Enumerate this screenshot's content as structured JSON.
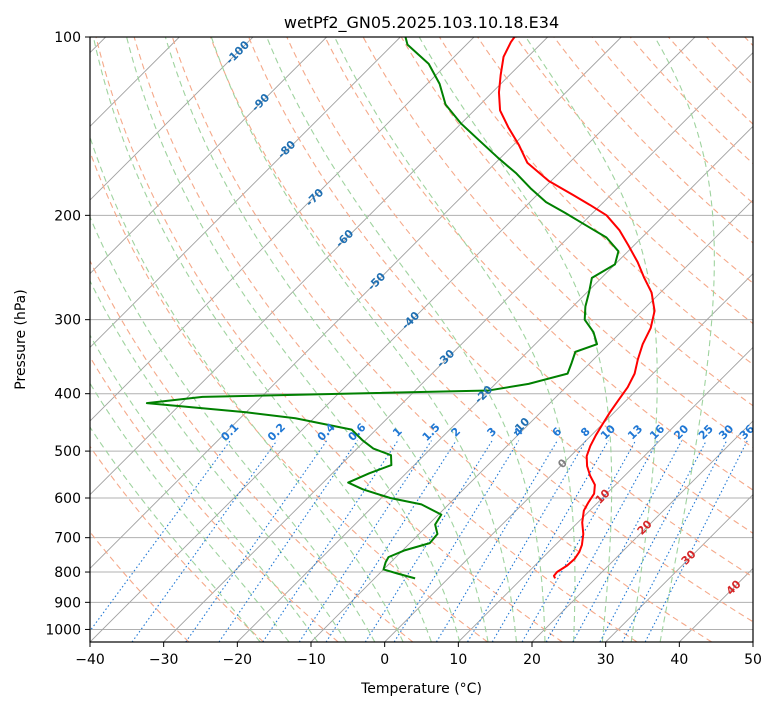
{
  "chart_data": {
    "type": "line",
    "title": "wetPf2_GN05.2025.103.10.18.E34",
    "xlabel": "Temperature (°C)",
    "ylabel": "Pressure (hPa)",
    "xlim": [
      -40,
      50
    ],
    "ylim": [
      1050,
      100
    ],
    "y_scale": "log",
    "skew": true,
    "grid": true,
    "x_ticks": [
      -40,
      -30,
      -20,
      -10,
      0,
      10,
      20,
      30,
      40,
      50
    ],
    "x_tick_labels": [
      "−40",
      "−30",
      "−20",
      "−10",
      "0",
      "10",
      "20",
      "30",
      "40",
      "50"
    ],
    "y_ticks": [
      1000,
      900,
      800,
      700,
      600,
      500,
      400,
      300,
      200,
      100
    ],
    "y_tick_labels": [
      "1000",
      "900",
      "800",
      "700",
      "600",
      "500",
      "400",
      "300",
      "200",
      "100"
    ],
    "series": [
      {
        "color": "#ff0000",
        "points": [
          [
            14.5,
            820
          ],
          [
            14.0,
            812
          ],
          [
            13.9,
            800
          ],
          [
            14.4,
            780
          ],
          [
            14.5,
            760
          ],
          [
            14.2,
            740
          ],
          [
            13.6,
            720
          ],
          [
            12.3,
            690
          ],
          [
            10.6,
            660
          ],
          [
            9.2,
            630
          ],
          [
            8.7,
            610
          ],
          [
            8.3,
            590
          ],
          [
            7.2,
            570
          ],
          [
            5.3,
            550
          ],
          [
            3.6,
            530
          ],
          [
            2.2,
            510
          ],
          [
            1.3,
            490
          ],
          [
            0.6,
            470
          ],
          [
            0.0,
            450
          ],
          [
            -0.6,
            430
          ],
          [
            -1.1,
            410
          ],
          [
            -1.6,
            390
          ],
          [
            -2.5,
            370
          ],
          [
            -4.0,
            350
          ],
          [
            -5.4,
            330
          ],
          [
            -6.5,
            310
          ],
          [
            -8.3,
            290
          ],
          [
            -11.2,
            270
          ],
          [
            -14.2,
            255
          ],
          [
            -17.2,
            240
          ],
          [
            -20.7,
            225
          ],
          [
            -24.0,
            212
          ],
          [
            -27.8,
            200
          ],
          [
            -31.5,
            192
          ],
          [
            -35.0,
            185
          ],
          [
            -40.3,
            175
          ],
          [
            -45.7,
            163
          ],
          [
            -49.3,
            152
          ],
          [
            -53.1,
            142
          ],
          [
            -56.5,
            133
          ],
          [
            -59.1,
            124
          ],
          [
            -61.2,
            116
          ],
          [
            -63.3,
            108
          ],
          [
            -64.3,
            102
          ],
          [
            -64.5,
            100
          ]
        ]
      },
      {
        "color": "#008000",
        "points": [
          [
            -4.5,
            820
          ],
          [
            -7.5,
            805
          ],
          [
            -10.0,
            792
          ],
          [
            -10.7,
            770
          ],
          [
            -11.0,
            755
          ],
          [
            -9.7,
            735
          ],
          [
            -7.3,
            715
          ],
          [
            -7.5,
            690
          ],
          [
            -9.1,
            665
          ],
          [
            -9.6,
            640
          ],
          [
            -13.7,
            615
          ],
          [
            -18.8,
            600
          ],
          [
            -23.7,
            580
          ],
          [
            -26.6,
            565
          ],
          [
            -25.0,
            545
          ],
          [
            -23.1,
            528
          ],
          [
            -24.5,
            508
          ],
          [
            -27.8,
            495
          ],
          [
            -30.3,
            480
          ],
          [
            -33.3,
            460
          ],
          [
            -42.5,
            440
          ],
          [
            -50.0,
            430
          ],
          [
            -64.7,
            415
          ],
          [
            -58.0,
            405
          ],
          [
            -20.0,
            395
          ],
          [
            -15.5,
            385
          ],
          [
            -11.6,
            370
          ],
          [
            -12.5,
            355
          ],
          [
            -13.5,
            340
          ],
          [
            -11.6,
            330
          ],
          [
            -13.7,
            315
          ],
          [
            -16.6,
            300
          ],
          [
            -18.3,
            285
          ],
          [
            -19.7,
            270
          ],
          [
            -21.3,
            255
          ],
          [
            -20.0,
            242
          ],
          [
            -21.3,
            230
          ],
          [
            -24.8,
            218
          ],
          [
            -29.2,
            208
          ],
          [
            -33.8,
            198
          ],
          [
            -37.8,
            190
          ],
          [
            -41.8,
            180
          ],
          [
            -45.7,
            170
          ],
          [
            -50.3,
            160
          ],
          [
            -55.0,
            150
          ],
          [
            -60.0,
            140
          ],
          [
            -64.7,
            130
          ],
          [
            -68.3,
            120
          ],
          [
            -72.5,
            111
          ],
          [
            -78.0,
            103
          ],
          [
            -79.3,
            100
          ]
        ]
      }
    ],
    "isotherm_labels": [
      "-100",
      "-90",
      "-80",
      "-70",
      "-60",
      "-50",
      "-40",
      "-30",
      "-20",
      "-10",
      "0",
      "10",
      "20",
      "30",
      "40"
    ],
    "mixing_ratio_labels": [
      "0.1",
      "0.2",
      "0.4",
      "0.6",
      "1",
      "1.5",
      "2",
      "3",
      "4",
      "6",
      "8",
      "10",
      "13",
      "16",
      "20",
      "25",
      "30",
      "36"
    ],
    "mixing_ratio_values": [
      0.1,
      0.2,
      0.4,
      0.6,
      1,
      1.5,
      2,
      3,
      4,
      6,
      8,
      10,
      13,
      16,
      20,
      25,
      30,
      36
    ],
    "colors": {
      "temperature": "#ff0000",
      "dewpoint": "#008000",
      "isotherm": "#a0a0a0",
      "dry_adiabat": "#f5a98a",
      "moist_adiabat": "#9fd39f",
      "mixing_ratio": "#1f77d4",
      "label_cold": "#1f6fb2",
      "label_zero": "#808080",
      "label_warm": "#d62728",
      "grid": "#b0b0b0"
    }
  }
}
